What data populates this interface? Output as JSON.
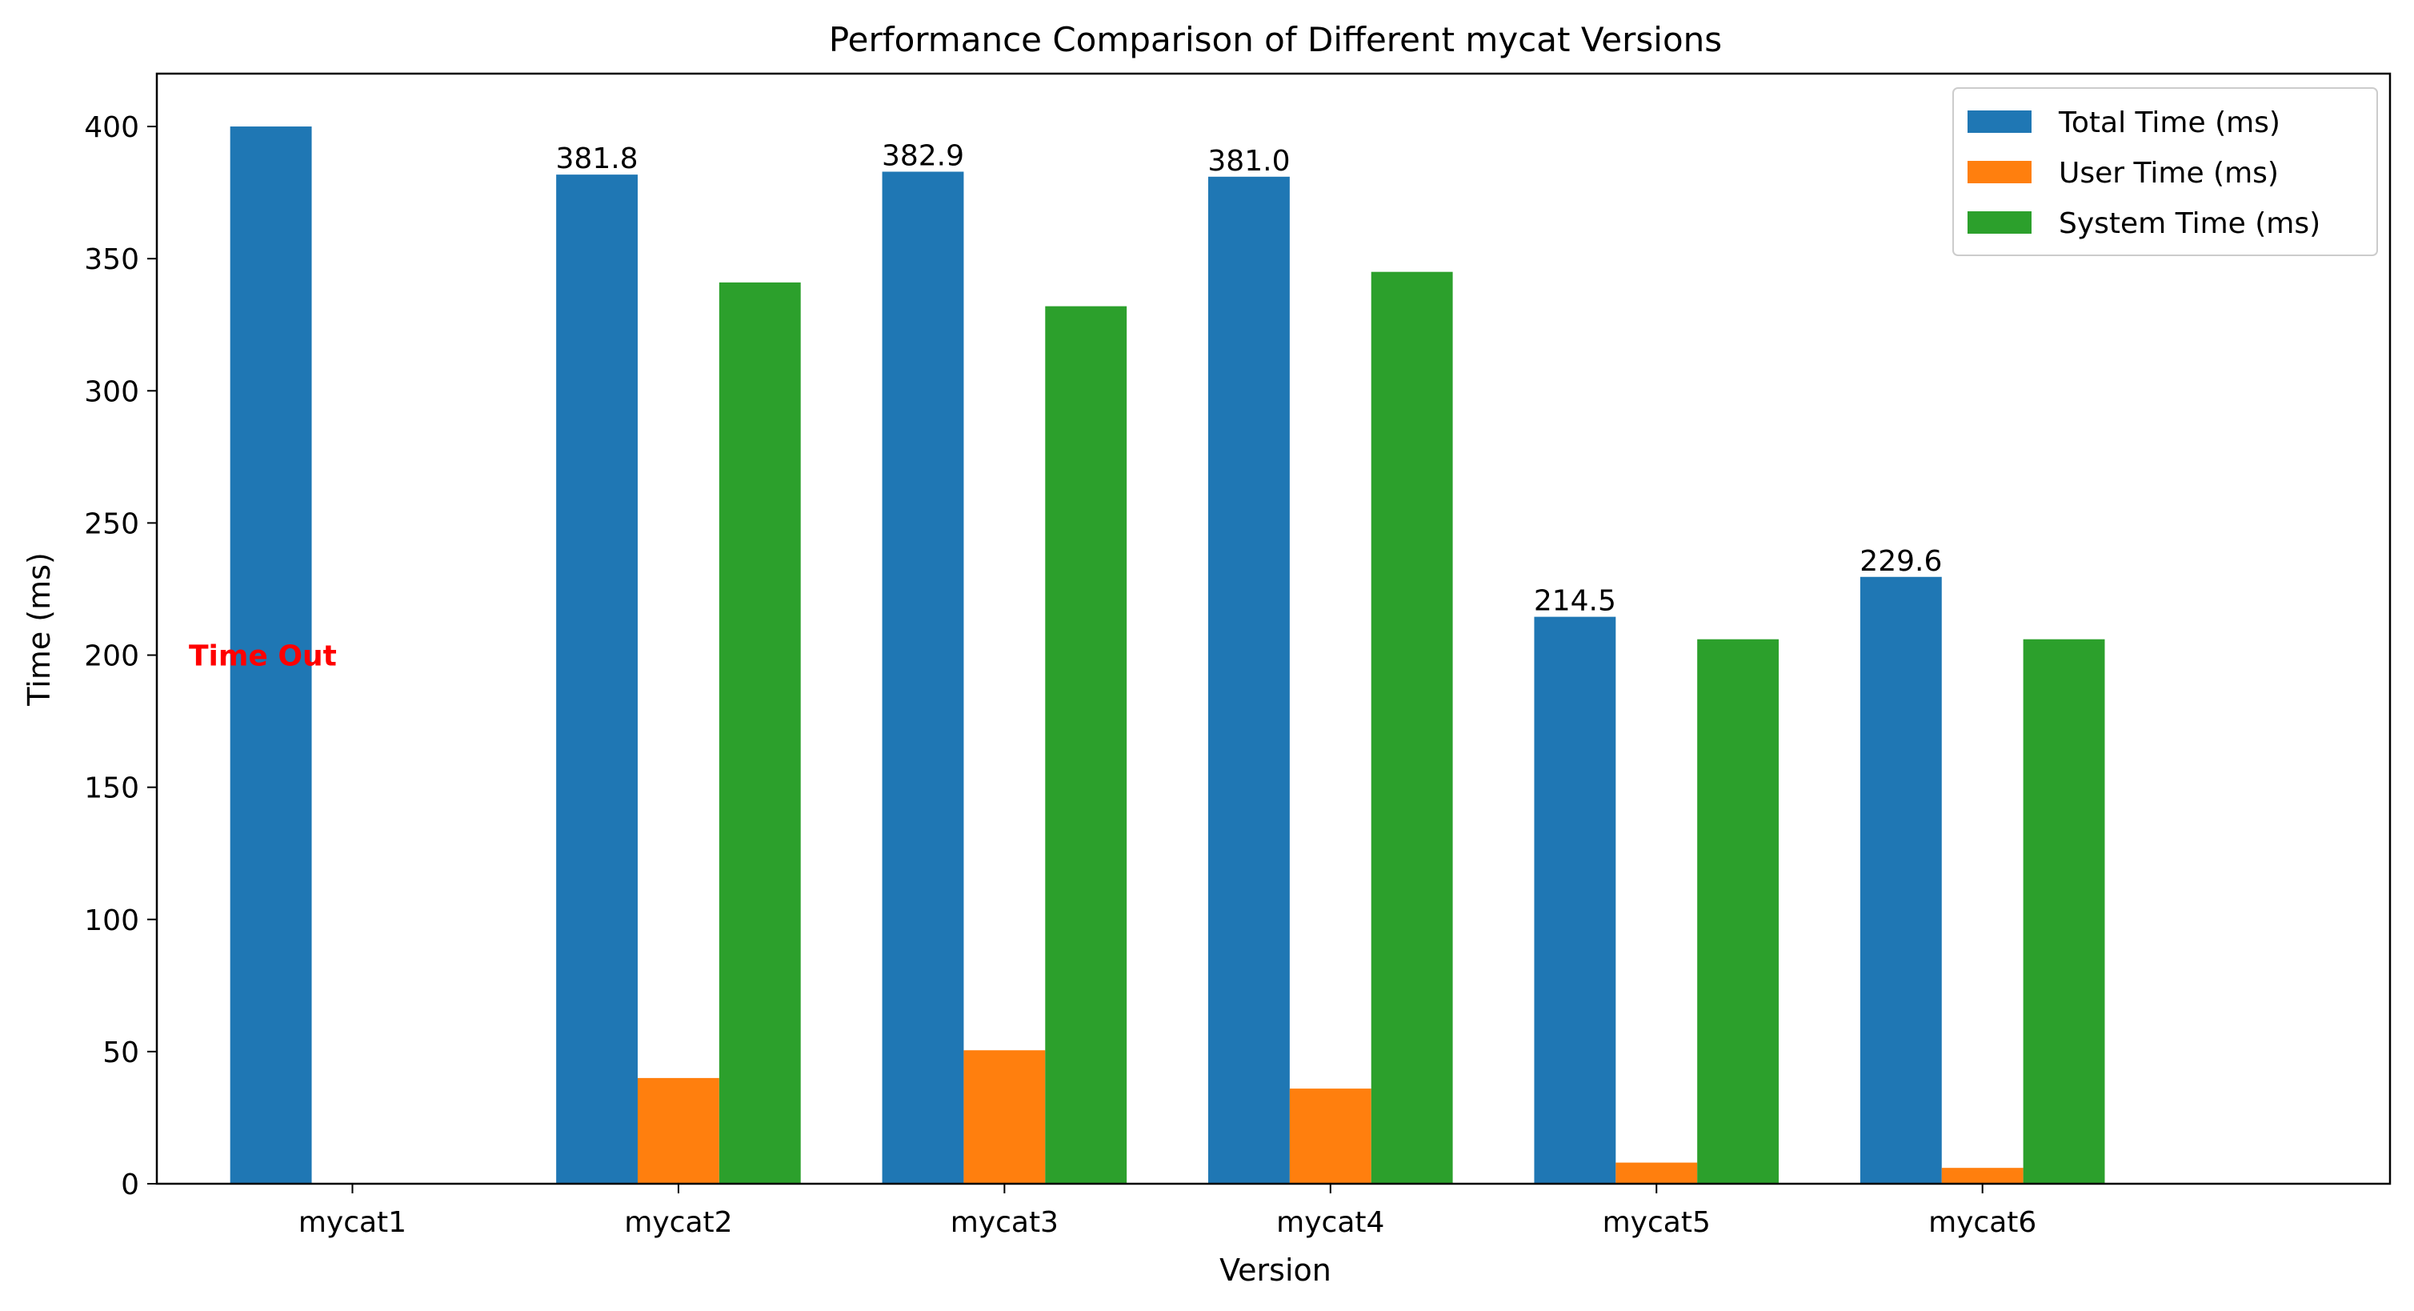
{
  "chart_data": {
    "type": "bar",
    "title": "Performance Comparison of Different mycat Versions",
    "xlabel": "Version",
    "ylabel": "Time (ms)",
    "categories": [
      "mycat1",
      "mycat2",
      "mycat3",
      "mycat4",
      "mycat5",
      "mycat6"
    ],
    "series": [
      {
        "name": "Total Time (ms)",
        "color": "#1f77b4",
        "values": [
          400,
          381.8,
          382.9,
          381.0,
          214.5,
          229.6
        ]
      },
      {
        "name": "User Time (ms)",
        "color": "#ff7f0e",
        "values": [
          0,
          40,
          50.5,
          36,
          8,
          6
        ]
      },
      {
        "name": "System Time (ms)",
        "color": "#2ca02c",
        "values": [
          0,
          341,
          332,
          345,
          206,
          206
        ]
      }
    ],
    "data_labels": [
      {
        "category": "mycat2",
        "text": "381.8"
      },
      {
        "category": "mycat3",
        "text": "382.9"
      },
      {
        "category": "mycat4",
        "text": "381.0"
      },
      {
        "category": "mycat5",
        "text": "214.5"
      },
      {
        "category": "mycat6",
        "text": "229.6"
      }
    ],
    "annotations": [
      {
        "text": "Time Out",
        "category": "mycat1",
        "y": 200,
        "color": "#ff0000"
      }
    ],
    "ylim": [
      0,
      420
    ],
    "yticks": [
      0,
      50,
      100,
      150,
      200,
      250,
      300,
      350,
      400
    ],
    "grid": false,
    "legend_position": "top-right"
  }
}
